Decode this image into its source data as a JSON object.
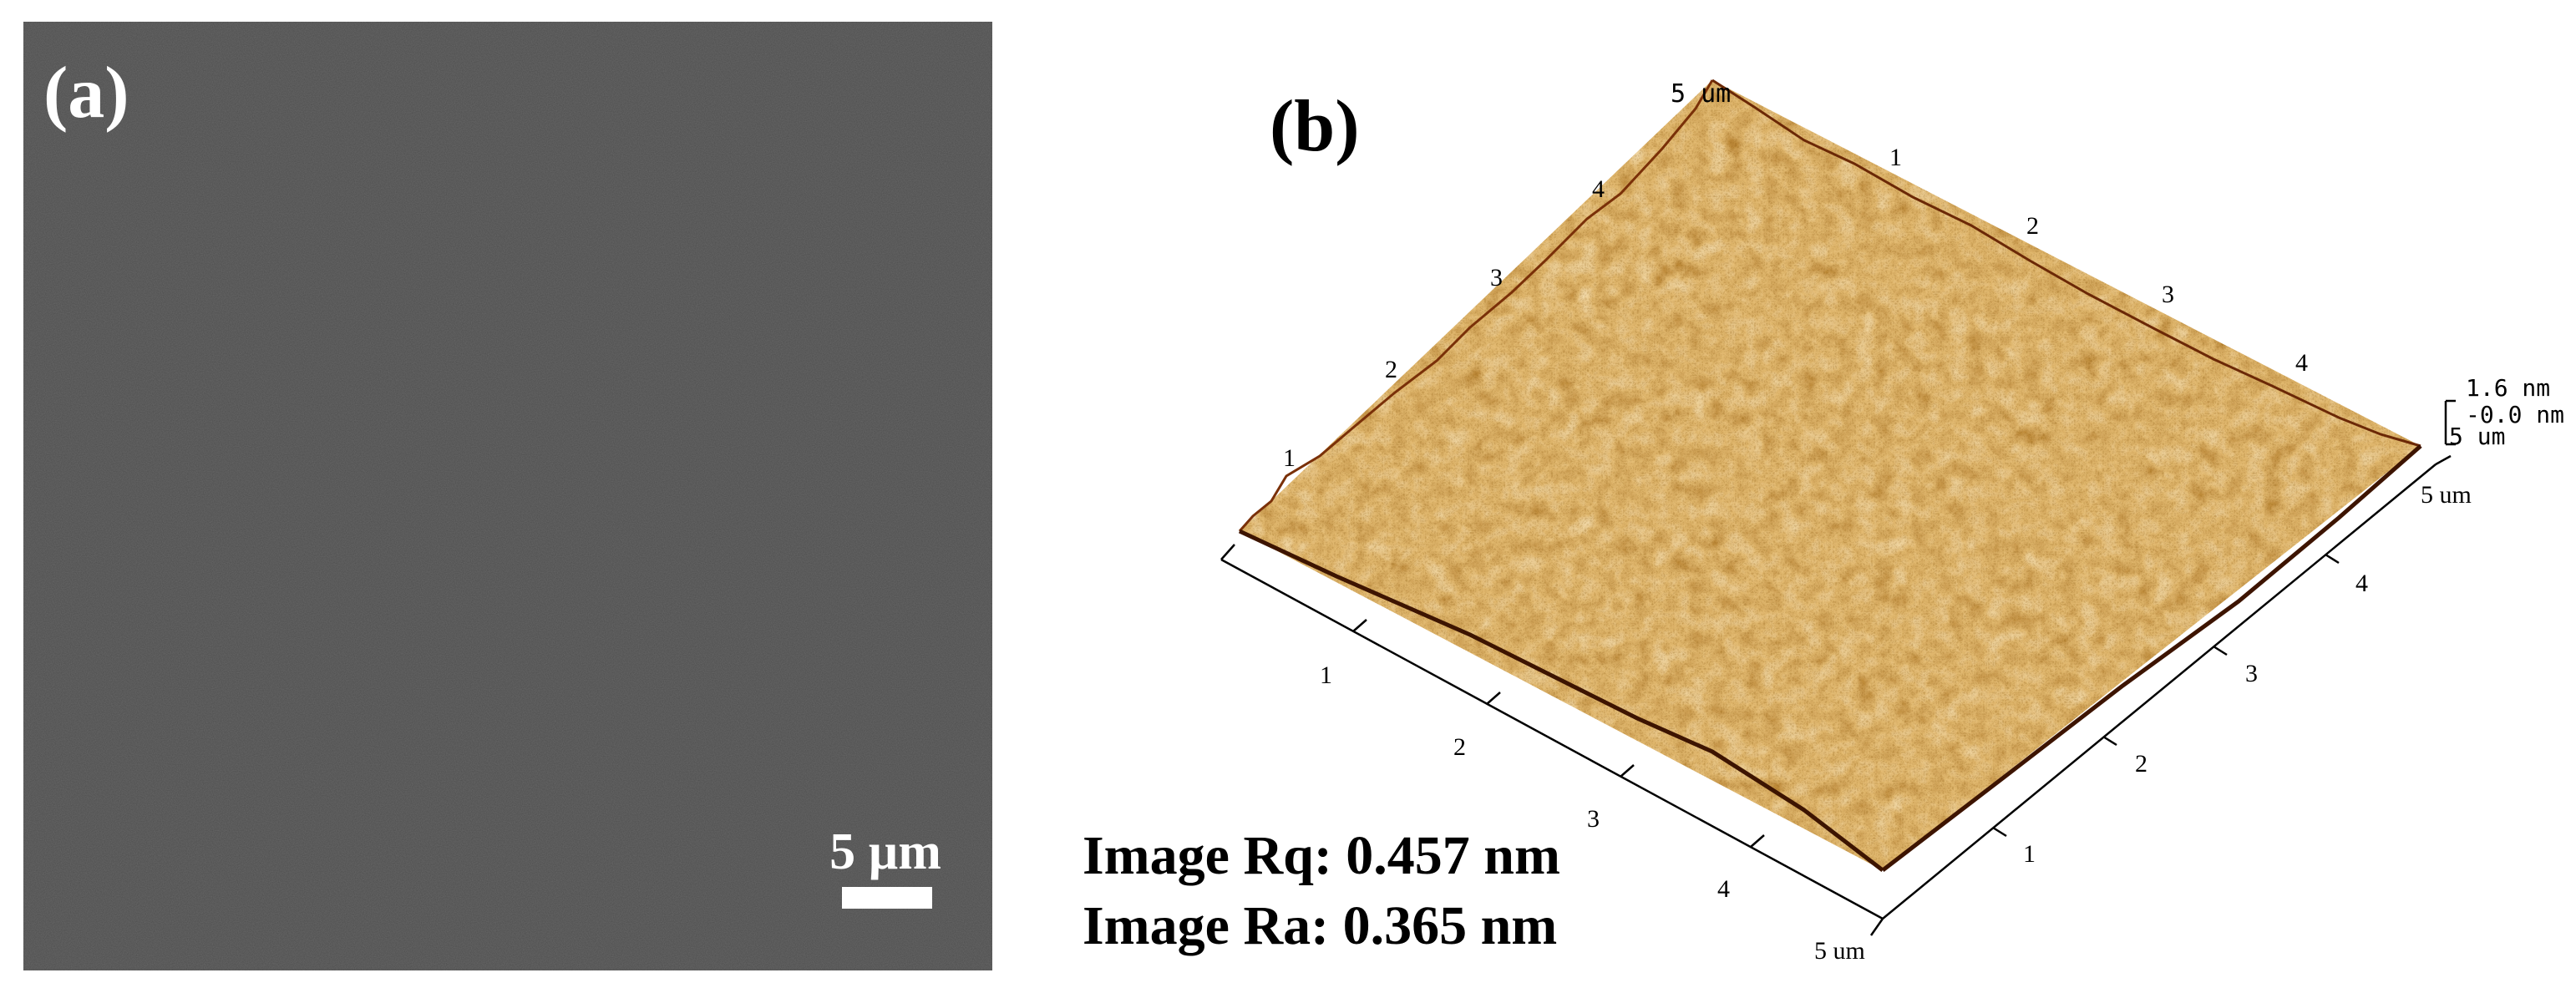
{
  "panel_a": {
    "label": "(a)",
    "scale_bar_label": "5 µm"
  },
  "panel_b": {
    "label": "(b)",
    "corner_label": "5 um",
    "back_left_ticks": [
      "1",
      "2",
      "3",
      "4"
    ],
    "back_right_ticks": [
      "1",
      "2",
      "3",
      "4"
    ],
    "front_left_ticks": [
      "1",
      "2",
      "3",
      "4"
    ],
    "front_left_end": "5 um",
    "front_right_ticks": [
      "1",
      "2",
      "3",
      "4"
    ],
    "front_right_end": "5 um",
    "z_scale": {
      "max_label": "1.6 nm",
      "min_label": "-0.0 nm",
      "unit_label": "5 um"
    },
    "roughness": {
      "rq": "Image Rq: 0.457 nm",
      "ra": "Image Ra: 0.365 nm"
    },
    "colors": {
      "dark": "#5a1e00",
      "mid": "#b8621a",
      "light": "#e8b060",
      "highlight": "#fff4dc"
    }
  }
}
